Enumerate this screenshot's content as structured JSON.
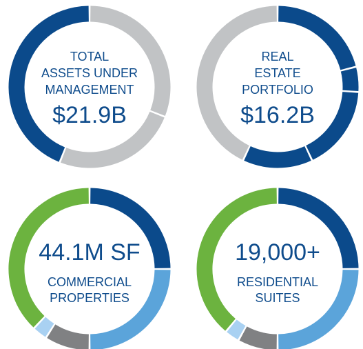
{
  "chart_data": [
    {
      "type": "pie",
      "label": [
        "TOTAL",
        "ASSETS UNDER",
        "MANAGEMENT"
      ],
      "figure": "$21.9B",
      "values": [
        31,
        25,
        44
      ],
      "colors": [
        "#c1c3c5",
        "#c1c3c5",
        "#0b4a8b"
      ]
    },
    {
      "type": "pie",
      "label": [
        "REAL",
        "ESTATE",
        "PORTFOLIO"
      ],
      "figure": "$16.2B",
      "values": [
        21,
        5,
        17,
        14,
        43
      ],
      "colors": [
        "#0b4a8b",
        "#0b4a8b",
        "#0b4a8b",
        "#0b4a8b",
        "#c1c3c5"
      ]
    },
    {
      "type": "pie",
      "figure": "44.1M SF",
      "label": [
        "COMMERCIAL",
        "PROPERTIES"
      ],
      "values": [
        25,
        25,
        9,
        3,
        38
      ],
      "colors": [
        "#0b4a8b",
        "#5ba4da",
        "#808183",
        "#a9d1f2",
        "#6cb33f"
      ]
    },
    {
      "type": "pie",
      "figure": "19,000+",
      "label": [
        "RESIDENTIAL",
        "SUITES"
      ],
      "values": [
        25,
        25,
        8,
        3,
        39
      ],
      "colors": [
        "#0b4a8b",
        "#5ba4da",
        "#808183",
        "#a9d1f2",
        "#6cb33f"
      ]
    }
  ]
}
